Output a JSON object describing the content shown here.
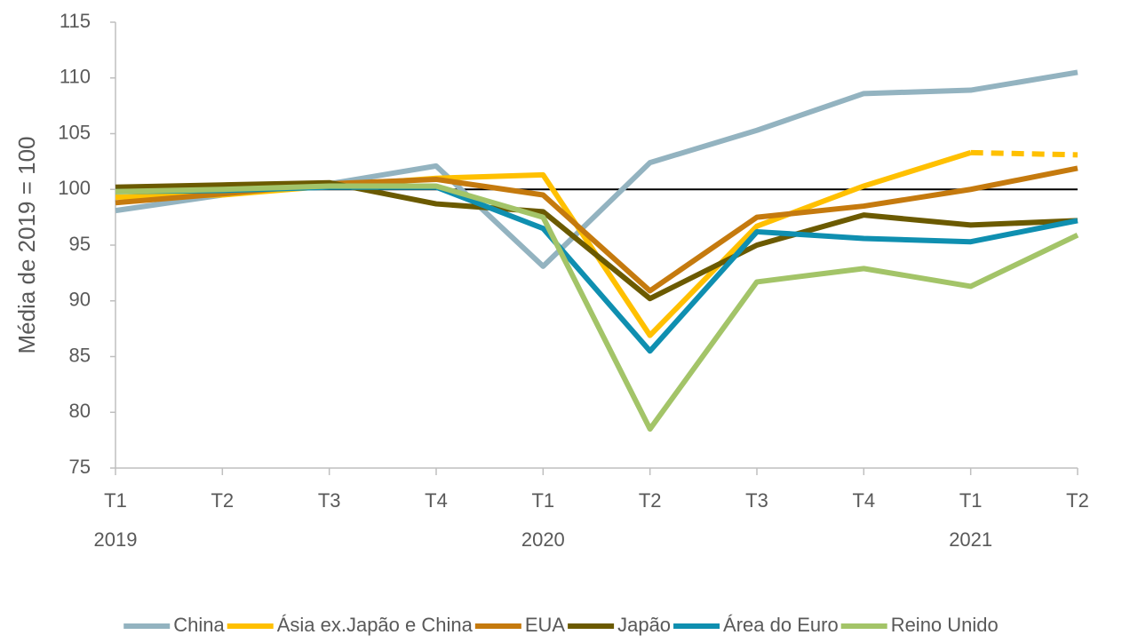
{
  "chart_data": {
    "type": "line",
    "y_label": "Média de 2019 = 100",
    "categories": [
      "T1",
      "T2",
      "T3",
      "T4",
      "T1",
      "T2",
      "T3",
      "T4",
      "T1",
      "T2"
    ],
    "years": [
      "2019",
      null,
      null,
      null,
      "2020",
      null,
      null,
      null,
      "2021",
      null
    ],
    "ylim": [
      75,
      115
    ],
    "yticks": [
      75,
      80,
      85,
      90,
      95,
      100,
      105,
      110,
      115
    ],
    "reference_line": 100,
    "grid": false,
    "legend": "bottom",
    "series": [
      {
        "name": "China",
        "color": "#93b3c0",
        "values": [
          98.1,
          99.5,
          100.5,
          102.1,
          93.1,
          102.4,
          105.3,
          108.6,
          108.9,
          110.5
        ]
      },
      {
        "name": "Ásia ex.Japão e China",
        "color": "#ffc000",
        "values": [
          99.3,
          99.5,
          100.3,
          101.0,
          101.3,
          86.9,
          96.7,
          100.3,
          103.3,
          103.1
        ],
        "dashed_segments": [
          8
        ]
      },
      {
        "name": "EUA",
        "color": "#c57a0e",
        "values": [
          98.8,
          99.6,
          100.5,
          100.9,
          99.5,
          90.9,
          97.5,
          98.5,
          100.0,
          101.9
        ]
      },
      {
        "name": "Japão",
        "color": "#6b5a00",
        "values": [
          100.2,
          100.4,
          100.6,
          98.7,
          98.0,
          90.2,
          95.0,
          97.7,
          96.8,
          97.2
        ]
      },
      {
        "name": "Área do Euro",
        "color": "#0f8fb0",
        "values": [
          99.8,
          99.9,
          100.2,
          100.2,
          96.5,
          85.5,
          96.2,
          95.6,
          95.3,
          97.2
        ]
      },
      {
        "name": "Reino Unido",
        "color": "#a3c468",
        "values": [
          99.8,
          100.0,
          100.3,
          100.3,
          97.5,
          78.5,
          91.7,
          92.9,
          91.3,
          95.9
        ]
      }
    ]
  }
}
